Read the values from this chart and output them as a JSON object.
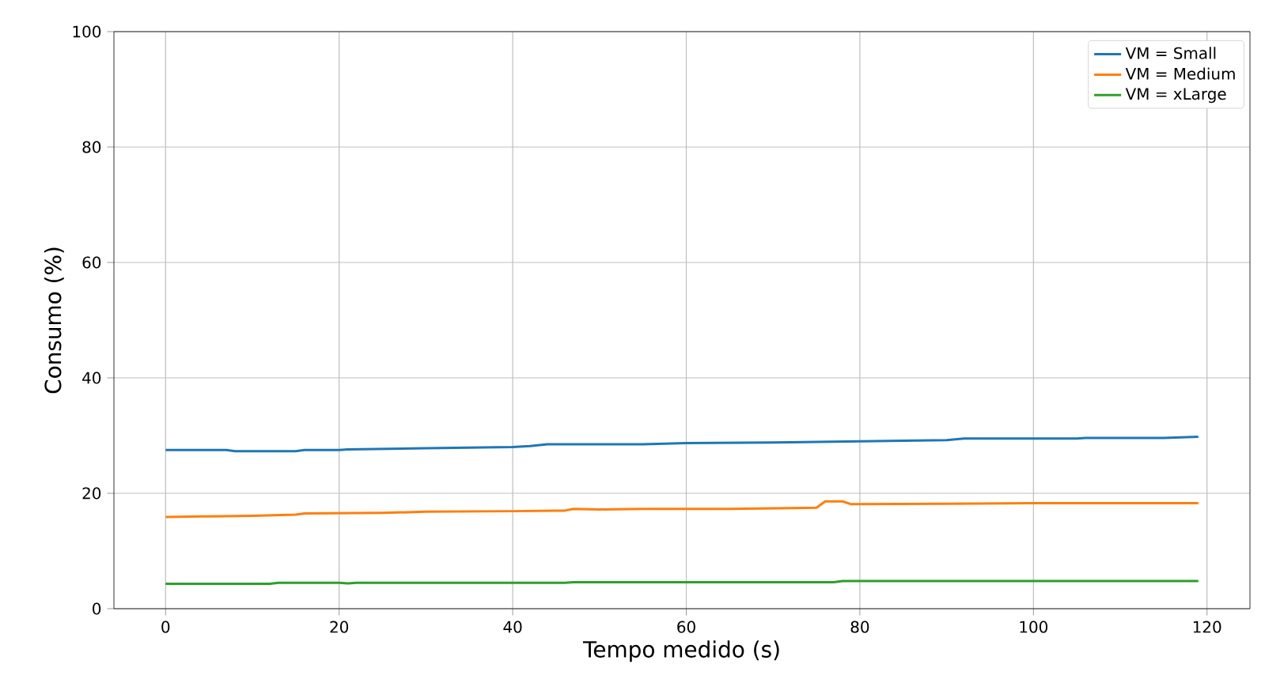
{
  "chart_data": {
    "type": "line",
    "xlabel": "Tempo medido (s)",
    "ylabel": "Consumo (%)",
    "xlim": [
      -5.95,
      124.95
    ],
    "xticks": [
      0,
      20,
      40,
      60,
      80,
      100,
      120
    ],
    "ylim": [
      0,
      100
    ],
    "yticks": [
      0,
      20,
      40,
      60,
      80,
      100
    ],
    "grid": true,
    "legend": "top right",
    "series": [
      {
        "name": "VM = Small",
        "color": "#1f77b4",
        "x": [
          0,
          7,
          8,
          15,
          16,
          20,
          21,
          30,
          40,
          42,
          44,
          55,
          60,
          70,
          80,
          90,
          92,
          105,
          106,
          115,
          119
        ],
        "values": [
          27.5,
          27.5,
          27.3,
          27.3,
          27.5,
          27.5,
          27.6,
          27.8,
          28.0,
          28.2,
          28.5,
          28.5,
          28.7,
          28.8,
          29.0,
          29.2,
          29.5,
          29.5,
          29.6,
          29.6,
          29.8
        ]
      },
      {
        "name": "VM = Medium",
        "color": "#ff7f0e",
        "x": [
          0,
          5,
          10,
          15,
          16,
          25,
          30,
          40,
          45,
          46,
          47,
          50,
          55,
          65,
          75,
          76,
          78,
          79,
          90,
          100,
          119
        ],
        "values": [
          15.9,
          16.0,
          16.1,
          16.3,
          16.5,
          16.6,
          16.8,
          16.9,
          17.0,
          17.0,
          17.3,
          17.2,
          17.3,
          17.3,
          17.5,
          18.6,
          18.6,
          18.1,
          18.2,
          18.3,
          18.3
        ]
      },
      {
        "name": "VM = xLarge",
        "color": "#2ca02c",
        "x": [
          0,
          12,
          13,
          20,
          21,
          22,
          46,
          47,
          77,
          78,
          119
        ],
        "values": [
          4.3,
          4.3,
          4.5,
          4.5,
          4.4,
          4.5,
          4.5,
          4.6,
          4.6,
          4.8,
          4.8
        ]
      }
    ]
  }
}
